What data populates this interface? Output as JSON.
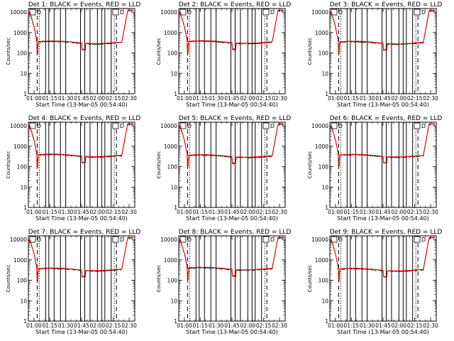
{
  "chart_data": {
    "type": "line",
    "layout": "3x3 grid",
    "xlabel": "Start Time (13-Mar-05 00:54:40)",
    "ylabel": "Counts/sec",
    "x_tick_labels": [
      "01:00",
      "01:15",
      "01:30",
      "01:45",
      "02:00",
      "02:15",
      "02:30"
    ],
    "x_tick_minutes": [
      0,
      15,
      30,
      45,
      60,
      75,
      90
    ],
    "xlim_minutes": [
      -5.33,
      95.33
    ],
    "y_scale": "log",
    "ylim": [
      1,
      15000
    ],
    "y_ticks": [
      1,
      10,
      100,
      1000,
      10000
    ],
    "y_tick_labels": [
      "1",
      "10",
      "100",
      "1000",
      "10000"
    ],
    "series_colors": {
      "events": "#000000",
      "lld": "#ff0000"
    },
    "box_label": "D",
    "vertical_markers": {
      "dashed": [
        3,
        78
      ],
      "dotted": [
        5,
        76
      ],
      "solid": [
        11,
        14,
        19,
        25,
        30,
        44,
        48,
        53,
        60,
        64,
        67,
        73
      ]
    },
    "panels": [
      {
        "title": "Det 1: BLACK = Events, RED = LLD",
        "level": 320,
        "dip_at": 47
      },
      {
        "title": "Det 2: BLACK = Events, RED = LLD",
        "level": 330,
        "dip_at": 47
      },
      {
        "title": "Det 3: BLACK = Events, RED = LLD",
        "level": 310,
        "dip_at": 47
      },
      {
        "title": "Det 4: BLACK = Events, RED = LLD",
        "level": 340,
        "dip_at": 47
      },
      {
        "title": "Det 5: BLACK = Events, RED = LLD",
        "level": 320,
        "dip_at": 47
      },
      {
        "title": "Det 6: BLACK = Events, RED = LLD",
        "level": 330,
        "dip_at": 47
      },
      {
        "title": "Det 7: BLACK = Events, RED = LLD",
        "level": 330,
        "dip_at": 47
      },
      {
        "title": "Det 8: BLACK = Events, RED = LLD",
        "level": 360,
        "dip_at": 47
      },
      {
        "title": "Det 9: BLACK = Events, RED = LLD",
        "level": 320,
        "dip_at": 47
      }
    ]
  }
}
